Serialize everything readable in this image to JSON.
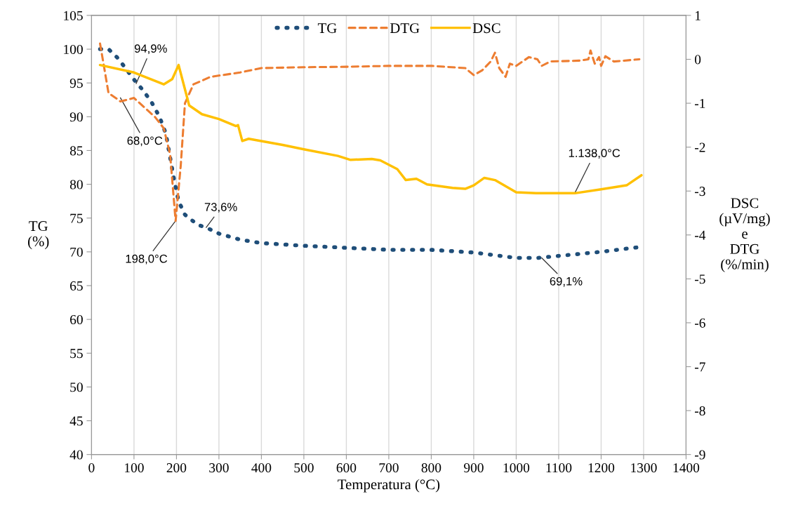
{
  "chart_data": {
    "type": "line",
    "xlabel": "Temperatura (°C)",
    "ylabel": "TG\n(%)",
    "y2label": "DSC\n(µV/mg)\ne\nDTG\n(%/min)",
    "xlim": [
      0,
      1400
    ],
    "xticks": [
      0,
      100,
      200,
      300,
      400,
      500,
      600,
      700,
      800,
      900,
      1000,
      1100,
      1200,
      1300,
      1400
    ],
    "ylim": [
      40,
      105
    ],
    "yticks": [
      40,
      45,
      50,
      55,
      60,
      65,
      70,
      75,
      80,
      85,
      90,
      95,
      100,
      105
    ],
    "y2lim": [
      -9,
      1
    ],
    "y2ticks": [
      -9,
      -8,
      -7,
      -6,
      -5,
      -4,
      -3,
      -2,
      -1,
      0,
      1
    ],
    "grid": "x",
    "legend": "top",
    "series": [
      {
        "name": "TG",
        "color": "#1f4e79",
        "line_style": "dotted",
        "x": [
          20,
          40,
          60,
          80,
          100,
          120,
          140,
          160,
          175,
          185,
          195,
          205,
          220,
          250,
          270,
          300,
          350,
          400,
          500,
          600,
          700,
          800,
          900,
          950,
          1000,
          1050,
          1100,
          1200,
          1290
        ],
        "values": [
          100,
          100,
          98.8,
          97.2,
          95.5,
          94,
          92.3,
          90,
          87.5,
          84,
          80.5,
          77.5,
          75.5,
          74,
          73.6,
          72.7,
          71.8,
          71.3,
          70.9,
          70.6,
          70.3,
          70.3,
          69.9,
          69.5,
          69.1,
          69.1,
          69.4,
          70,
          70.7
        ]
      },
      {
        "name": "DTG",
        "color": "#ed7d31",
        "line_style": "dashed",
        "axis": "y2",
        "x": [
          20,
          30,
          40,
          60,
          68,
          100,
          150,
          170,
          185,
          198,
          210,
          220,
          240,
          280,
          350,
          400,
          500,
          600,
          700,
          800,
          880,
          900,
          920,
          940,
          950,
          960,
          975,
          985,
          1000,
          1030,
          1050,
          1060,
          1080,
          1150,
          1170,
          1175,
          1185,
          1195,
          1200,
          1210,
          1230,
          1290
        ],
        "values": [
          0.36,
          -0.2,
          -0.77,
          -0.9,
          -0.96,
          -0.88,
          -1.32,
          -1.57,
          -2.16,
          -3.68,
          -2.43,
          -1.0,
          -0.57,
          -0.4,
          -0.3,
          -0.2,
          -0.18,
          -0.17,
          -0.15,
          -0.15,
          -0.2,
          -0.36,
          -0.25,
          -0.05,
          0.15,
          -0.2,
          -0.4,
          -0.1,
          -0.15,
          0.05,
          0.0,
          -0.15,
          -0.05,
          -0.03,
          0.0,
          0.2,
          -0.1,
          0.05,
          -0.15,
          0.07,
          -0.05,
          0.0
        ]
      },
      {
        "name": "DSC",
        "color": "#ffc000",
        "line_style": "solid",
        "axis": "y2",
        "x": [
          20,
          100,
          170,
          190,
          205,
          215,
          230,
          260,
          300,
          340,
          345,
          355,
          370,
          450,
          500,
          580,
          610,
          660,
          680,
          720,
          740,
          765,
          790,
          850,
          880,
          900,
          925,
          950,
          1000,
          1050,
          1138,
          1200,
          1260,
          1295
        ],
        "values": [
          -0.13,
          -0.3,
          -0.57,
          -0.45,
          -0.13,
          -0.5,
          -1.05,
          -1.25,
          -1.36,
          -1.52,
          -1.5,
          -1.86,
          -1.81,
          -1.95,
          -2.05,
          -2.2,
          -2.29,
          -2.27,
          -2.3,
          -2.5,
          -2.75,
          -2.72,
          -2.85,
          -2.93,
          -2.95,
          -2.87,
          -2.7,
          -2.75,
          -3.03,
          -3.05,
          -3.05,
          -2.96,
          -2.87,
          -2.64
        ]
      }
    ],
    "annotations": [
      {
        "text": "94,9%",
        "x": 105,
        "y": 94.9
      },
      {
        "text": "68,0°C",
        "x": 68,
        "y": 92.8
      },
      {
        "text": "198,0°C",
        "x": 198,
        "y": 74.6
      },
      {
        "text": "73,6%",
        "x": 270,
        "y": 73.6
      },
      {
        "text": "69,1%",
        "x": 1060,
        "y": 69.1
      },
      {
        "text": "1.138,0°C",
        "x": 1138,
        "y": 78.7
      }
    ]
  }
}
